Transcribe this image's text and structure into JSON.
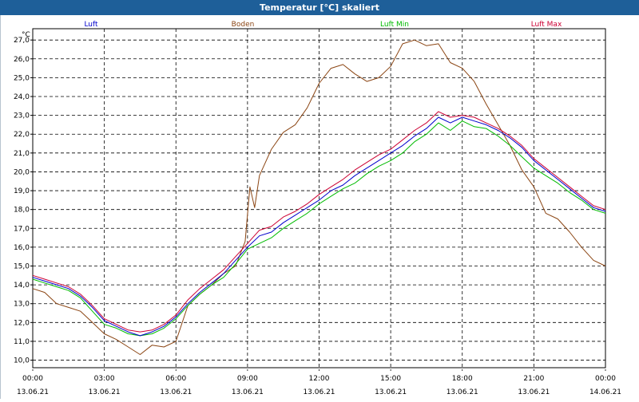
{
  "window": {
    "title": "Temperatur [°C] skaliert"
  },
  "chart_data": {
    "type": "line",
    "title": "Temperatur [°C] skaliert",
    "ylabel": "°C",
    "xlabel": "",
    "ylim": [
      9.6,
      27.6
    ],
    "xlim": [
      0,
      24
    ],
    "y_ticks": [
      10,
      11,
      12,
      13,
      14,
      15,
      16,
      17,
      18,
      19,
      20,
      21,
      22,
      23,
      24,
      25,
      26,
      27
    ],
    "y_tick_labels": [
      "10,0",
      "11,0",
      "12,0",
      "13,0",
      "14,0",
      "15,0",
      "16,0",
      "17,0",
      "18,0",
      "19,0",
      "20,0",
      "21,0",
      "22,0",
      "23,0",
      "24,0",
      "25,0",
      "26,0",
      "27,0"
    ],
    "x_ticks": [
      0,
      3,
      6,
      9,
      12,
      15,
      18,
      21,
      24
    ],
    "x_tick_labels": [
      {
        "time": "00:00",
        "date": "13.06.21"
      },
      {
        "time": "03:00",
        "date": "13.06.21"
      },
      {
        "time": "06:00",
        "date": "13.06.21"
      },
      {
        "time": "09:00",
        "date": "13.06.21"
      },
      {
        "time": "12:00",
        "date": "13.06.21"
      },
      {
        "time": "15:00",
        "date": "13.06.21"
      },
      {
        "time": "18:00",
        "date": "13.06.21"
      },
      {
        "time": "21:00",
        "date": "13.06.21"
      },
      {
        "time": "00:00",
        "date": "14.06.21"
      }
    ],
    "grid": true,
    "legend_position": "top",
    "series": [
      {
        "name": "Luft",
        "color": "#0000cc",
        "x": [
          0,
          0.5,
          1,
          1.5,
          2,
          2.5,
          3,
          3.5,
          4,
          4.5,
          5,
          5.5,
          6,
          6.5,
          7,
          7.5,
          8,
          8.5,
          9,
          9.5,
          10,
          10.5,
          11,
          11.5,
          12,
          12.5,
          13,
          13.5,
          14,
          14.5,
          15,
          15.5,
          16,
          16.5,
          17,
          17.5,
          18,
          18.5,
          19,
          19.5,
          20,
          20.5,
          21,
          21.5,
          22,
          22.5,
          23,
          23.5,
          24
        ],
        "values": [
          14.4,
          14.2,
          14.0,
          13.8,
          13.4,
          12.8,
          12.1,
          11.8,
          11.5,
          11.3,
          11.5,
          11.8,
          12.3,
          13.0,
          13.6,
          14.1,
          14.6,
          15.3,
          16.0,
          16.6,
          16.8,
          17.3,
          17.7,
          18.1,
          18.5,
          19.0,
          19.3,
          19.8,
          20.2,
          20.6,
          21.0,
          21.4,
          21.9,
          22.3,
          22.9,
          22.6,
          22.9,
          22.7,
          22.5,
          22.2,
          21.8,
          21.3,
          20.6,
          20.1,
          19.6,
          19.1,
          18.6,
          18.1,
          17.9
        ]
      },
      {
        "name": "Boden",
        "color": "#8b4513",
        "x": [
          0,
          0.5,
          1,
          1.5,
          2,
          2.5,
          3,
          3.5,
          4,
          4.5,
          5,
          5.5,
          6,
          6.5,
          7,
          7.5,
          8,
          8.5,
          8.9,
          9.1,
          9.3,
          9.5,
          10,
          10.5,
          11,
          11.5,
          12,
          12.5,
          13,
          13.5,
          14,
          14.5,
          15,
          15.5,
          16,
          16.5,
          17,
          17.5,
          18,
          18.5,
          19,
          19.5,
          20,
          20.5,
          21,
          21.5,
          22,
          22.5,
          23,
          23.5,
          24
        ],
        "values": [
          13.8,
          13.6,
          13.0,
          12.8,
          12.6,
          12.0,
          11.4,
          11.1,
          10.7,
          10.3,
          10.8,
          10.7,
          11.0,
          12.9,
          13.5,
          14.0,
          14.6,
          15.0,
          16.3,
          19.2,
          18.1,
          19.8,
          21.2,
          22.1,
          22.5,
          23.4,
          24.7,
          25.5,
          25.7,
          25.2,
          24.8,
          25.0,
          25.6,
          26.8,
          27.0,
          26.7,
          26.8,
          25.8,
          25.5,
          24.8,
          23.6,
          22.5,
          21.4,
          20.1,
          19.2,
          17.8,
          17.5,
          16.8,
          16.0,
          15.3,
          15.0
        ]
      },
      {
        "name": "Luft Min",
        "color": "#00bb00",
        "x": [
          0,
          0.5,
          1,
          1.5,
          2,
          2.5,
          3,
          3.5,
          4,
          4.5,
          5,
          5.5,
          6,
          6.5,
          7,
          7.5,
          8,
          8.5,
          9,
          9.5,
          10,
          10.5,
          11,
          11.5,
          12,
          12.5,
          13,
          13.5,
          14,
          14.5,
          15,
          15.5,
          16,
          16.5,
          17,
          17.5,
          18,
          18.5,
          19,
          19.5,
          20,
          20.5,
          21,
          21.5,
          22,
          22.5,
          23,
          23.5,
          24
        ],
        "values": [
          14.3,
          14.1,
          13.9,
          13.7,
          13.3,
          12.6,
          11.9,
          11.7,
          11.4,
          11.3,
          11.4,
          11.7,
          12.2,
          12.9,
          13.5,
          14.0,
          14.4,
          15.1,
          15.9,
          16.2,
          16.5,
          17.0,
          17.4,
          17.8,
          18.3,
          18.7,
          19.1,
          19.4,
          19.9,
          20.3,
          20.6,
          21.0,
          21.6,
          22.0,
          22.6,
          22.2,
          22.7,
          22.4,
          22.3,
          21.9,
          21.4,
          20.8,
          20.2,
          19.8,
          19.4,
          18.9,
          18.5,
          18.0,
          17.8
        ]
      },
      {
        "name": "Luft Max",
        "color": "#cc0033",
        "x": [
          0,
          0.5,
          1,
          1.5,
          2,
          2.5,
          3,
          3.5,
          4,
          4.5,
          5,
          5.5,
          6,
          6.5,
          7,
          7.5,
          8,
          8.5,
          9,
          9.5,
          10,
          10.5,
          11,
          11.5,
          12,
          12.5,
          13,
          13.5,
          14,
          14.5,
          15,
          15.5,
          16,
          16.5,
          17,
          17.5,
          18,
          18.5,
          19,
          19.5,
          20,
          20.5,
          21,
          21.5,
          22,
          22.5,
          23,
          23.5,
          24
        ],
        "values": [
          14.5,
          14.3,
          14.1,
          13.9,
          13.5,
          12.9,
          12.2,
          11.9,
          11.6,
          11.5,
          11.6,
          11.9,
          12.4,
          13.2,
          13.8,
          14.3,
          14.8,
          15.5,
          16.2,
          16.9,
          17.1,
          17.6,
          17.9,
          18.3,
          18.8,
          19.2,
          19.6,
          20.1,
          20.5,
          20.9,
          21.2,
          21.7,
          22.2,
          22.6,
          23.2,
          22.9,
          23.0,
          22.9,
          22.6,
          22.3,
          21.9,
          21.4,
          20.7,
          20.2,
          19.7,
          19.2,
          18.7,
          18.2,
          18.0
        ]
      }
    ]
  }
}
